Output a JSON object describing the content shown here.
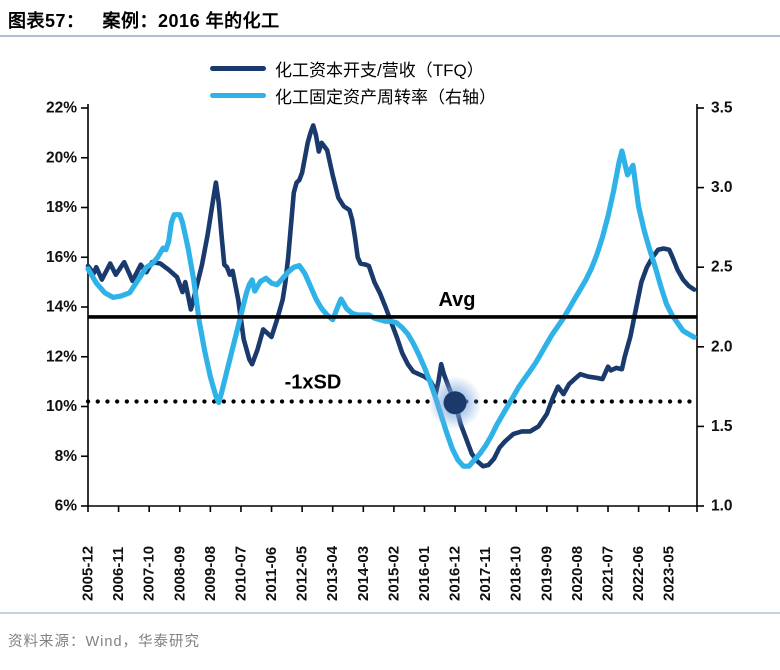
{
  "header": {
    "figure_label": "图表57：",
    "title": "案例：2016 年的化工"
  },
  "footer": {
    "source": "资料来源：Wind，华泰研究"
  },
  "colors": {
    "series_dark": "#1a3a6d",
    "series_light": "#2eb2e8",
    "annotation_line": "#000000",
    "highlight_dot": "#1b3a6b",
    "highlight_glow": "#7fa8dc",
    "rule": "#aebfd6"
  },
  "chart_data": {
    "type": "line",
    "title": "案例：2016 年的化工",
    "legend_position": "top",
    "grid": false,
    "x_tick_labels": [
      "2005-12",
      "2006-11",
      "2007-10",
      "2008-09",
      "2009-08",
      "2010-07",
      "2011-06",
      "2012-05",
      "2013-04",
      "2014-03",
      "2015-02",
      "2016-01",
      "2016-12",
      "2017-11",
      "2018-10",
      "2019-09",
      "2020-08",
      "2021-07",
      "2022-06",
      "2023-05"
    ],
    "x_months_per_tick": 11,
    "left_axis": {
      "labels": [
        "22%",
        "20%",
        "18%",
        "16%",
        "14%",
        "12%",
        "10%",
        "8%",
        "6%"
      ],
      "values": [
        22,
        20,
        18,
        16,
        14,
        12,
        10,
        8,
        6
      ],
      "lim": [
        6,
        22
      ]
    },
    "right_axis": {
      "labels": [
        "3.5",
        "3.0",
        "2.5",
        "2.0",
        "1.5",
        "1.0"
      ],
      "values": [
        3.5,
        3.0,
        2.5,
        2.0,
        1.5,
        1.0
      ],
      "lim": [
        1.0,
        3.5
      ]
    },
    "annotations": {
      "avg": {
        "label": "Avg",
        "value": 13.6
      },
      "minus1sd": {
        "label": "-1xSD",
        "value": 10.2
      }
    },
    "highlight": {
      "x_label": "2016-12",
      "month_index": 132,
      "value": 10.15,
      "color": "#1b3a6b"
    },
    "series": [
      {
        "name": "化工资本开支/营收（TFQ）",
        "axis": "left",
        "color": "#1a3a6d",
        "width": 4.6,
        "points": [
          [
            0,
            15.65
          ],
          [
            2,
            15.35
          ],
          [
            3,
            15.6
          ],
          [
            5,
            15.1
          ],
          [
            8,
            15.75
          ],
          [
            10,
            15.3
          ],
          [
            13,
            15.8
          ],
          [
            16,
            15.05
          ],
          [
            19,
            15.7
          ],
          [
            21,
            15.4
          ],
          [
            23,
            15.8
          ],
          [
            26,
            15.75
          ],
          [
            29,
            15.5
          ],
          [
            32,
            15.2
          ],
          [
            34,
            14.6
          ],
          [
            35,
            15.0
          ],
          [
            37,
            13.9
          ],
          [
            39,
            14.8
          ],
          [
            41,
            15.7
          ],
          [
            43,
            16.9
          ],
          [
            45,
            18.3
          ],
          [
            46,
            19.0
          ],
          [
            47,
            18.2
          ],
          [
            48,
            16.9
          ],
          [
            49,
            15.7
          ],
          [
            50,
            15.6
          ],
          [
            51,
            15.3
          ],
          [
            52,
            15.45
          ],
          [
            54,
            14.3
          ],
          [
            56,
            12.7
          ],
          [
            58,
            11.9
          ],
          [
            59,
            11.7
          ],
          [
            61,
            12.3
          ],
          [
            63,
            13.1
          ],
          [
            66,
            12.8
          ],
          [
            68,
            13.5
          ],
          [
            70,
            14.3
          ],
          [
            71,
            15.0
          ],
          [
            72,
            16.0
          ],
          [
            73,
            17.3
          ],
          [
            74,
            18.6
          ],
          [
            75,
            19.0
          ],
          [
            76,
            19.1
          ],
          [
            77,
            19.4
          ],
          [
            78,
            20.0
          ],
          [
            79,
            20.6
          ],
          [
            80,
            21.0
          ],
          [
            81,
            21.3
          ],
          [
            82,
            20.9
          ],
          [
            83,
            20.25
          ],
          [
            84,
            20.6
          ],
          [
            86,
            20.3
          ],
          [
            88,
            19.3
          ],
          [
            90,
            18.4
          ],
          [
            92,
            18.05
          ],
          [
            94,
            17.9
          ],
          [
            95,
            17.5
          ],
          [
            96,
            16.8
          ],
          [
            97,
            16.0
          ],
          [
            98,
            15.75
          ],
          [
            100,
            15.7
          ],
          [
            101,
            15.65
          ],
          [
            103,
            15.0
          ],
          [
            105,
            14.55
          ],
          [
            107,
            14.0
          ],
          [
            109,
            13.4
          ],
          [
            111,
            12.8
          ],
          [
            113,
            12.15
          ],
          [
            115,
            11.7
          ],
          [
            117,
            11.4
          ],
          [
            119,
            11.3
          ],
          [
            121,
            11.2
          ],
          [
            123,
            11.05
          ],
          [
            124,
            10.85
          ],
          [
            125,
            10.5
          ],
          [
            126,
            11.0
          ],
          [
            127,
            11.7
          ],
          [
            128,
            11.3
          ],
          [
            130,
            10.7
          ],
          [
            132,
            10.15
          ],
          [
            134,
            9.3
          ],
          [
            136,
            8.7
          ],
          [
            138,
            8.1
          ],
          [
            140,
            7.8
          ],
          [
            142,
            7.6
          ],
          [
            144,
            7.65
          ],
          [
            146,
            7.9
          ],
          [
            148,
            8.35
          ],
          [
            150,
            8.6
          ],
          [
            153,
            8.9
          ],
          [
            156,
            9.0
          ],
          [
            159,
            9.0
          ],
          [
            162,
            9.2
          ],
          [
            165,
            9.7
          ],
          [
            167,
            10.3
          ],
          [
            169,
            10.8
          ],
          [
            171,
            10.5
          ],
          [
            173,
            10.9
          ],
          [
            175,
            11.1
          ],
          [
            177,
            11.3
          ],
          [
            180,
            11.2
          ],
          [
            183,
            11.15
          ],
          [
            185,
            11.1
          ],
          [
            187,
            11.6
          ],
          [
            188,
            11.45
          ],
          [
            190,
            11.55
          ],
          [
            192,
            11.5
          ],
          [
            193,
            12.0
          ],
          [
            195,
            12.8
          ],
          [
            197,
            13.9
          ],
          [
            199,
            15.0
          ],
          [
            201,
            15.6
          ],
          [
            203,
            16.0
          ],
          [
            205,
            16.3
          ],
          [
            207,
            16.35
          ],
          [
            209,
            16.3
          ],
          [
            210,
            16.05
          ],
          [
            212,
            15.5
          ],
          [
            214,
            15.1
          ],
          [
            216,
            14.85
          ],
          [
            218,
            14.7
          ]
        ]
      },
      {
        "name": "化工固定资产周转率（右轴）",
        "axis": "right",
        "color": "#2eb2e8",
        "width": 5.2,
        "points": [
          [
            0,
            2.49
          ],
          [
            3,
            2.4
          ],
          [
            6,
            2.34
          ],
          [
            9,
            2.31
          ],
          [
            12,
            2.32
          ],
          [
            15,
            2.34
          ],
          [
            18,
            2.42
          ],
          [
            21,
            2.5
          ],
          [
            23,
            2.52
          ],
          [
            25,
            2.56
          ],
          [
            27,
            2.62
          ],
          [
            28,
            2.61
          ],
          [
            29,
            2.66
          ],
          [
            30,
            2.78
          ],
          [
            31,
            2.83
          ],
          [
            33,
            2.83
          ],
          [
            34,
            2.78
          ],
          [
            36,
            2.62
          ],
          [
            38,
            2.42
          ],
          [
            40,
            2.16
          ],
          [
            42,
            1.97
          ],
          [
            44,
            1.81
          ],
          [
            46,
            1.69
          ],
          [
            47,
            1.65
          ],
          [
            48,
            1.71
          ],
          [
            50,
            1.85
          ],
          [
            52,
            1.99
          ],
          [
            54,
            2.13
          ],
          [
            56,
            2.27
          ],
          [
            57,
            2.34
          ],
          [
            58,
            2.39
          ],
          [
            59,
            2.42
          ],
          [
            60,
            2.35
          ],
          [
            62,
            2.41
          ],
          [
            64,
            2.43
          ],
          [
            66,
            2.4
          ],
          [
            68,
            2.39
          ],
          [
            70,
            2.43
          ],
          [
            72,
            2.47
          ],
          [
            74,
            2.5
          ],
          [
            76,
            2.51
          ],
          [
            78,
            2.46
          ],
          [
            80,
            2.38
          ],
          [
            82,
            2.3
          ],
          [
            84,
            2.24
          ],
          [
            86,
            2.2
          ],
          [
            88,
            2.17
          ],
          [
            90,
            2.26
          ],
          [
            91,
            2.3
          ],
          [
            93,
            2.24
          ],
          [
            95,
            2.21
          ],
          [
            97,
            2.2
          ],
          [
            99,
            2.2
          ],
          [
            101,
            2.2
          ],
          [
            103,
            2.18
          ],
          [
            105,
            2.17
          ],
          [
            107,
            2.16
          ],
          [
            109,
            2.16
          ],
          [
            111,
            2.15
          ],
          [
            113,
            2.12
          ],
          [
            115,
            2.08
          ],
          [
            117,
            2.02
          ],
          [
            119,
            1.95
          ],
          [
            121,
            1.87
          ],
          [
            123,
            1.78
          ],
          [
            125,
            1.68
          ],
          [
            127,
            1.57
          ],
          [
            129,
            1.46
          ],
          [
            131,
            1.36
          ],
          [
            133,
            1.29
          ],
          [
            135,
            1.25
          ],
          [
            137,
            1.25
          ],
          [
            139,
            1.29
          ],
          [
            141,
            1.33
          ],
          [
            143,
            1.38
          ],
          [
            145,
            1.44
          ],
          [
            147,
            1.51
          ],
          [
            149,
            1.57
          ],
          [
            151,
            1.63
          ],
          [
            153,
            1.69
          ],
          [
            155,
            1.75
          ],
          [
            157,
            1.8
          ],
          [
            159,
            1.85
          ],
          [
            161,
            1.9
          ],
          [
            163,
            1.96
          ],
          [
            165,
            2.02
          ],
          [
            167,
            2.08
          ],
          [
            169,
            2.13
          ],
          [
            171,
            2.18
          ],
          [
            173,
            2.24
          ],
          [
            175,
            2.3
          ],
          [
            177,
            2.36
          ],
          [
            179,
            2.42
          ],
          [
            181,
            2.49
          ],
          [
            183,
            2.58
          ],
          [
            185,
            2.69
          ],
          [
            187,
            2.82
          ],
          [
            189,
            2.98
          ],
          [
            191,
            3.16
          ],
          [
            192,
            3.23
          ],
          [
            194,
            3.08
          ],
          [
            196,
            3.14
          ],
          [
            198,
            2.88
          ],
          [
            200,
            2.73
          ],
          [
            202,
            2.61
          ],
          [
            204,
            2.5
          ],
          [
            206,
            2.38
          ],
          [
            208,
            2.27
          ],
          [
            210,
            2.2
          ],
          [
            212,
            2.15
          ],
          [
            214,
            2.1
          ],
          [
            216,
            2.08
          ],
          [
            218,
            2.06
          ]
        ]
      }
    ]
  }
}
